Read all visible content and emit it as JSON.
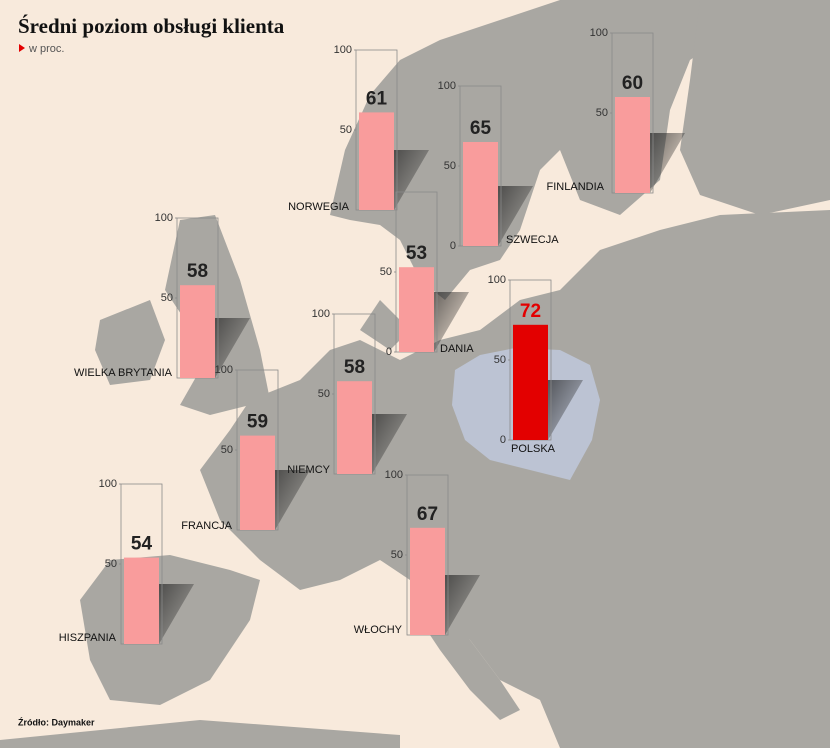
{
  "title": "Średni poziom obsługi klienta",
  "subtitle": "w proc.",
  "source": "Źródło: Daymaker",
  "chart_data": [
    {
      "type": "bar",
      "categories": [
        "NORWEGIA"
      ],
      "values": [
        61
      ],
      "color": "#f99c9c",
      "value_label_color": "#222222",
      "ylim": [
        0,
        100
      ],
      "yticks": [
        50,
        100
      ]
    },
    {
      "type": "bar",
      "categories": [
        "SZWECJA"
      ],
      "values": [
        65
      ],
      "color": "#f99c9c",
      "value_label_color": "#222222",
      "ylim": [
        0,
        100
      ],
      "yticks": [
        0,
        50,
        100
      ]
    },
    {
      "type": "bar",
      "categories": [
        "FINLANDIA"
      ],
      "values": [
        60
      ],
      "color": "#f99c9c",
      "value_label_color": "#222222",
      "ylim": [
        0,
        100
      ],
      "yticks": [
        50,
        100
      ]
    },
    {
      "type": "bar",
      "categories": [
        "WIELKA BRYTANIA"
      ],
      "values": [
        58
      ],
      "color": "#f99c9c",
      "value_label_color": "#222222",
      "ylim": [
        0,
        100
      ],
      "yticks": [
        50,
        100
      ]
    },
    {
      "type": "bar",
      "categories": [
        "DANIA"
      ],
      "values": [
        53
      ],
      "color": "#f99c9c",
      "value_label_color": "#222222",
      "ylim": [
        0,
        100
      ],
      "yticks": [
        0,
        50
      ]
    },
    {
      "type": "bar",
      "categories": [
        "POLSKA"
      ],
      "values": [
        72
      ],
      "color": "#e30000",
      "value_label_color": "#e30000",
      "ylim": [
        0,
        100
      ],
      "yticks": [
        0,
        50,
        100
      ]
    },
    {
      "type": "bar",
      "categories": [
        "NIEMCY"
      ],
      "values": [
        58
      ],
      "color": "#f99c9c",
      "value_label_color": "#222222",
      "ylim": [
        0,
        100
      ],
      "yticks": [
        50,
        100
      ]
    },
    {
      "type": "bar",
      "categories": [
        "FRANCJA"
      ],
      "values": [
        59
      ],
      "color": "#f99c9c",
      "value_label_color": "#222222",
      "ylim": [
        0,
        100
      ],
      "yticks": [
        50,
        100
      ]
    },
    {
      "type": "bar",
      "categories": [
        "HISZPANIA"
      ],
      "values": [
        54
      ],
      "color": "#f99c9c",
      "value_label_color": "#222222",
      "ylim": [
        0,
        100
      ],
      "yticks": [
        50,
        100
      ]
    },
    {
      "type": "bar",
      "categories": [
        "WŁOCHY"
      ],
      "values": [
        67
      ],
      "color": "#f99c9c",
      "value_label_color": "#222222",
      "ylim": [
        0,
        100
      ],
      "yticks": [
        50,
        100
      ]
    }
  ]
}
